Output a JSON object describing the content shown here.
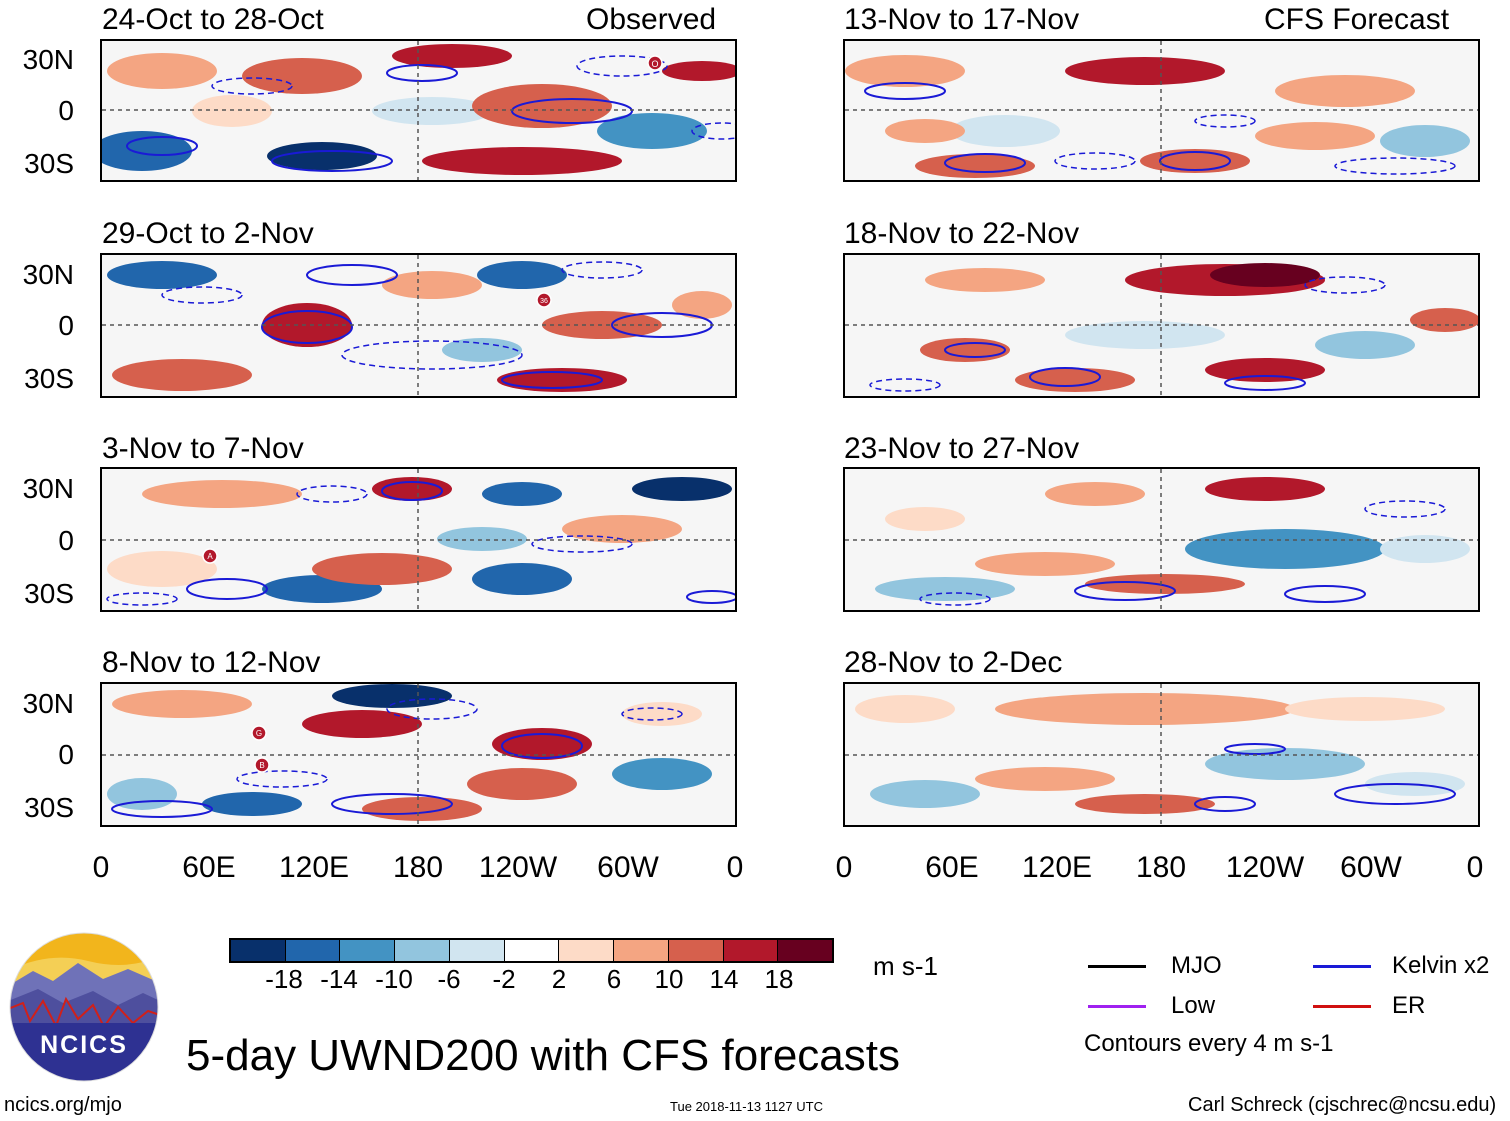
{
  "panels": [
    {
      "title": "24-Oct to 28-Oct",
      "tag": "Observed"
    },
    {
      "title": "13-Nov to 17-Nov",
      "tag": "CFS Forecast"
    },
    {
      "title": "29-Oct to 2-Nov",
      "tag": ""
    },
    {
      "title": "18-Nov to 22-Nov",
      "tag": ""
    },
    {
      "title": "3-Nov to 7-Nov",
      "tag": ""
    },
    {
      "title": "23-Nov to 27-Nov",
      "tag": ""
    },
    {
      "title": "8-Nov to 12-Nov",
      "tag": ""
    },
    {
      "title": "28-Nov to 2-Dec",
      "tag": ""
    }
  ],
  "lat_labels": [
    "30N",
    "0",
    "30S"
  ],
  "lon_labels": [
    "0",
    "60E",
    "120E",
    "180",
    "120W",
    "60W",
    "0"
  ],
  "colorbar": {
    "labels": [
      "-18",
      "-14",
      "-10",
      "-6",
      "-2",
      "2",
      "6",
      "10",
      "14",
      "18"
    ],
    "colors": [
      "#08306b",
      "#2166ac",
      "#4393c3",
      "#92c5de",
      "#d1e5f0",
      "#ffffff",
      "#fddbc7",
      "#f4a582",
      "#d6604d",
      "#b2182b",
      "#67001f"
    ],
    "units": "m s-1"
  },
  "legend": {
    "mjo": "MJO",
    "kelvin": "Kelvin x2",
    "low": "Low",
    "er": "ER",
    "mjo_color": "#000000",
    "kelvin_color": "#1a1ad6",
    "low_color": "#a020f0",
    "er_color": "#d01010",
    "contours": "Contours every 4 m s-1"
  },
  "storm_markers": [
    "O",
    "36",
    "A",
    "G",
    "B"
  ],
  "main_title": "5-day UWND200 with CFS forecasts",
  "logo_text": "NCICS",
  "footer": {
    "url": "ncics.org/mjo",
    "timestamp": "Tue 2018-11-13 1127 UTC",
    "author": "Carl Schreck (cjschrec@ncsu.edu)"
  }
}
